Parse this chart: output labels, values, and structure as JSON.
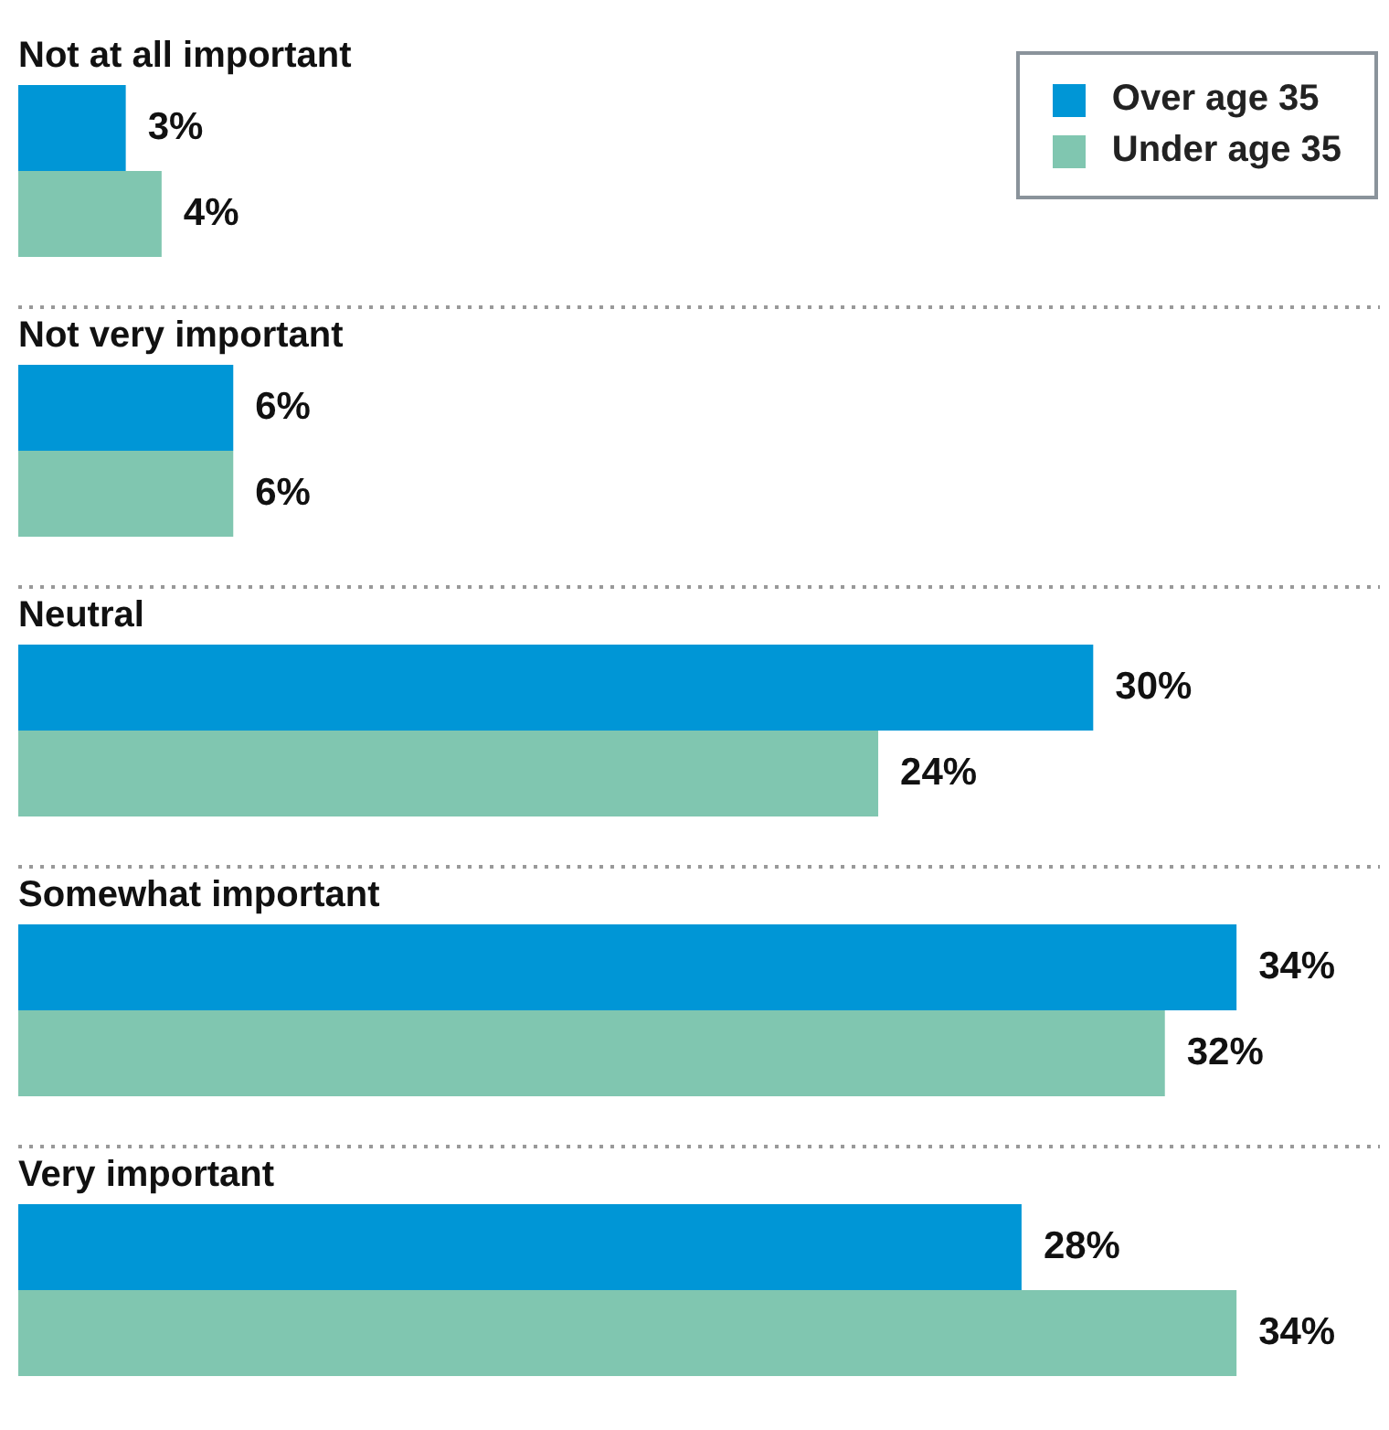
{
  "chart_data": {
    "type": "bar",
    "orientation": "horizontal",
    "categories": [
      "Not at all important",
      "Not very important",
      "Neutral",
      "Somewhat important",
      "Very important"
    ],
    "xlim": [
      0,
      38
    ],
    "tick_labels": false,
    "legend": "top right",
    "series": [
      {
        "name": "Over age 35",
        "color": "#0096d6",
        "values": [
          3,
          6,
          30,
          34,
          28
        ],
        "value_labels": [
          "3%",
          "6%",
          "30%",
          "34%",
          "28%"
        ]
      },
      {
        "name": "Under age 35",
        "color": "#80c6b0",
        "values": [
          4,
          6,
          24,
          32,
          34
        ],
        "value_labels": [
          "4%",
          "6%",
          "24%",
          "32%",
          "34%"
        ]
      }
    ]
  }
}
